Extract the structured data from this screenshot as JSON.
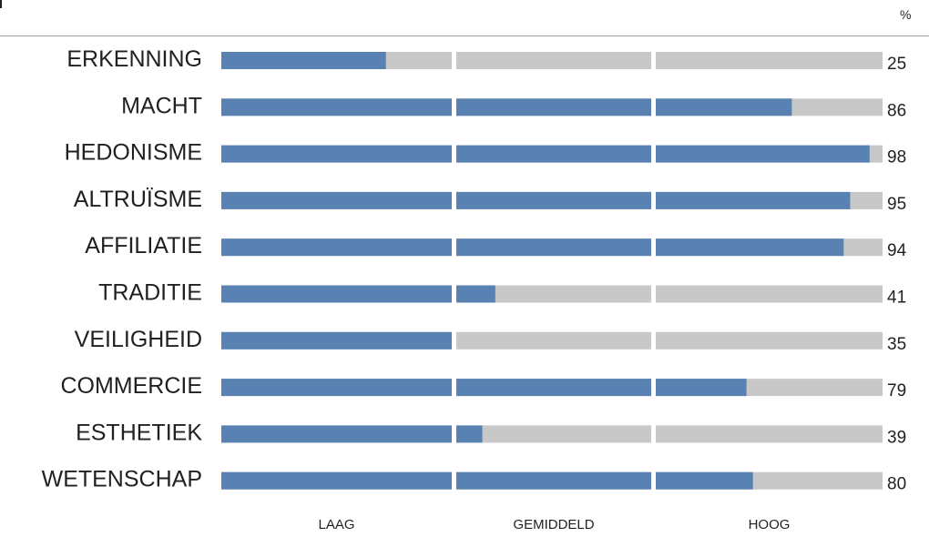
{
  "chart_data": {
    "type": "bar",
    "orientation": "horizontal",
    "unit_label": "%",
    "categories": [
      "ERKENNING",
      "MACHT",
      "HEDONISME",
      "ALTRUÏSME",
      "AFFILIATIE",
      "TRADITIE",
      "VEILIGHEID",
      "COMMERCIE",
      "ESTHETIEK",
      "WETENSCHAP"
    ],
    "values": [
      25,
      86,
      98,
      95,
      94,
      41,
      35,
      79,
      39,
      80
    ],
    "xlim": [
      0,
      100
    ],
    "bands": [
      {
        "label": "LAAG",
        "from": 0,
        "to": 35
      },
      {
        "label": "GEMIDDELD",
        "from": 35,
        "to": 65
      },
      {
        "label": "HOOG",
        "from": 65,
        "to": 100
      }
    ],
    "colors": {
      "fill": "#5982b2",
      "track": "#c8c8c8",
      "separator": "#ffffff"
    },
    "grid": false,
    "legend": "none"
  }
}
